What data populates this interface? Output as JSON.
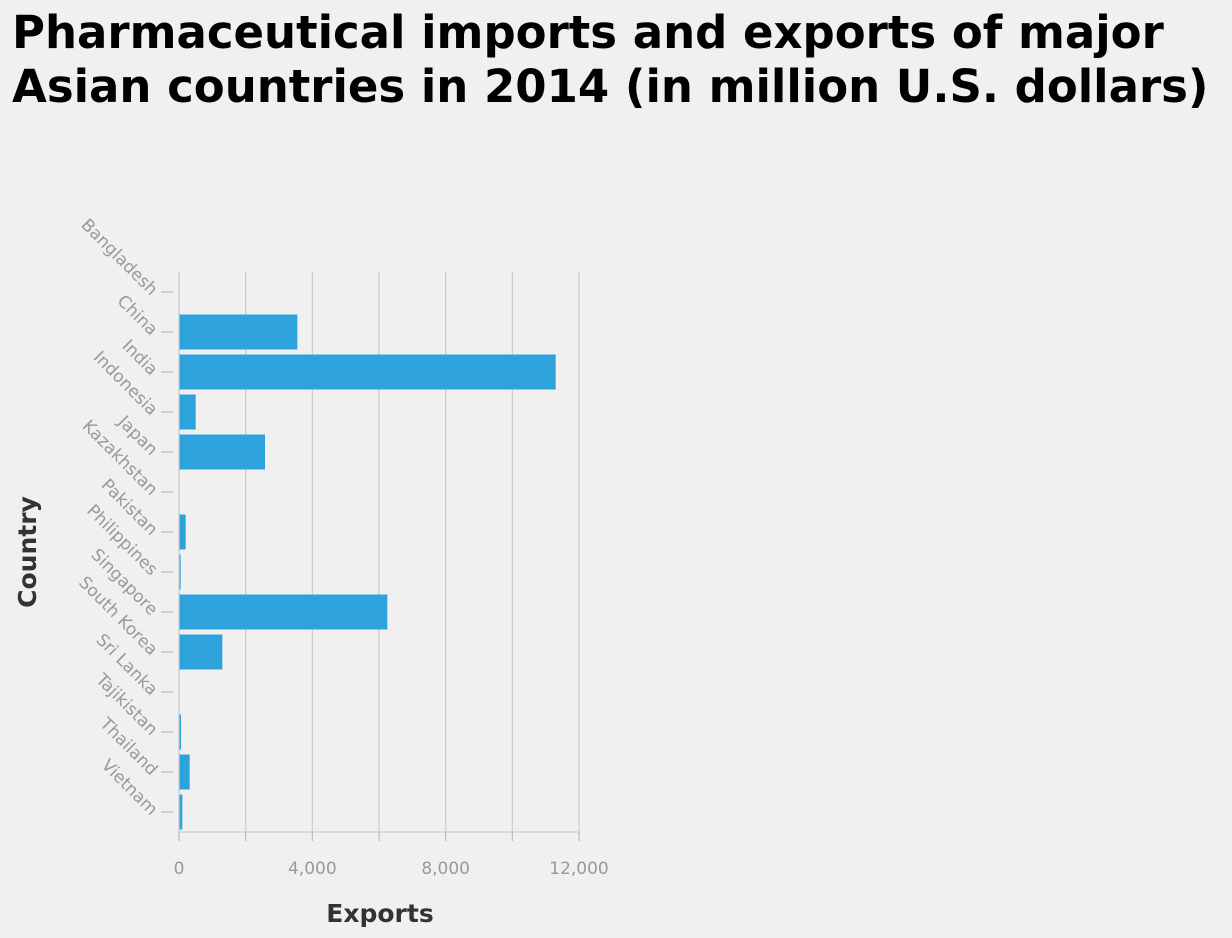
{
  "chart_data": {
    "type": "bar",
    "orientation": "horizontal",
    "title": "Pharmaceutical imports and exports of major Asian countries in 2014 (in million U.S. dollars)",
    "xlabel": "Exports",
    "ylabel": "Country",
    "categories": [
      "Bangladesh",
      "China",
      "India",
      "Indonesia",
      "Japan",
      "Kazakhstan",
      "Pakistan",
      "Philippines",
      "Singapore",
      "South Korea",
      "Sri Lanka",
      "Tajikistan",
      "Thailand",
      "Vietnam"
    ],
    "values": [
      0,
      3550,
      11300,
      500,
      2580,
      15,
      200,
      50,
      6250,
      1300,
      5,
      60,
      320,
      100
    ],
    "xlim": [
      0,
      12000
    ],
    "xticks": [
      0,
      4000,
      8000,
      12000
    ],
    "xtick_labels": [
      "0",
      "4,000",
      "8,000",
      "12,000"
    ],
    "grid": true,
    "legend": "none",
    "bar_color": "#2ea3db"
  }
}
